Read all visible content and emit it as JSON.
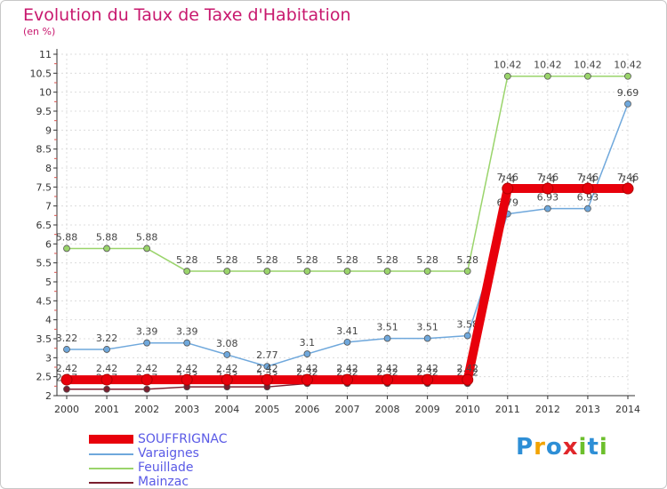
{
  "title": "Evolution du Taux de Taxe d'Habitation",
  "unit": "(en %)",
  "brand": {
    "text": "Proxiti",
    "letters": [
      "P",
      "r",
      "o",
      "x",
      "i",
      "t",
      "i"
    ],
    "colors": [
      "#2e8fd6",
      "#f2a300",
      "#2e8fd6",
      "#e0262a",
      "#6cbf2c",
      "#2e8fd6",
      "#6cbf2c"
    ]
  },
  "chart_data": {
    "type": "line",
    "x": [
      "2000",
      "2001",
      "2002",
      "2003",
      "2004",
      "2005",
      "2006",
      "2007",
      "2008",
      "2009",
      "2010",
      "2011",
      "2012",
      "2013",
      "2014"
    ],
    "ylim": [
      2,
      11
    ],
    "yticks": [
      "2",
      "2.5",
      "3",
      "3.5",
      "4",
      "4.5",
      "5",
      "5.5",
      "6",
      "6.5",
      "7",
      "7.5",
      "8",
      "8.5",
      "9",
      "9.5",
      "10",
      "10.5",
      "11"
    ],
    "grid": true,
    "legend_position": "bottom-left",
    "series": [
      {
        "name": "Mainzac",
        "color": "#7a1e2e",
        "values": [
          2.17,
          2.17,
          2.17,
          2.23,
          2.23,
          2.23,
          2.32,
          2.32,
          2.32,
          2.32,
          2.32,
          7.4,
          7.4,
          7.4,
          7.4
        ],
        "labels": [
          "2.17",
          "2.17",
          "2.17",
          "2.23",
          "2.23",
          "2.23",
          "2.32",
          "2.32",
          "2.32",
          "2.32",
          "2.32",
          "7.4",
          "7.4",
          "7.4",
          "7.4"
        ]
      },
      {
        "name": "Varaignes",
        "color": "#6fa8dc",
        "values": [
          3.22,
          3.22,
          3.39,
          3.39,
          3.08,
          2.77,
          3.1,
          3.41,
          3.51,
          3.51,
          3.58,
          6.79,
          6.93,
          6.93,
          9.69
        ],
        "labels": [
          "3.22",
          "3.22",
          "3.39",
          "3.39",
          "3.08",
          "2.77",
          "3.1",
          "3.41",
          "3.51",
          "3.51",
          "3.58",
          "6.79",
          "6.93",
          "6.93",
          "9.69"
        ]
      },
      {
        "name": "Feuillade",
        "color": "#9ad46b",
        "values": [
          5.88,
          5.88,
          5.88,
          5.28,
          5.28,
          5.28,
          5.28,
          5.28,
          5.28,
          5.28,
          5.28,
          10.42,
          10.42,
          10.42,
          10.42
        ],
        "labels": [
          "5.88",
          "5.88",
          "5.88",
          "5.28",
          "5.28",
          "5.28",
          "5.28",
          "5.28",
          "5.28",
          "5.28",
          "5.28",
          "10.42",
          "10.42",
          "10.42",
          "10.42"
        ]
      },
      {
        "name": "SOUFFRIGNAC",
        "color": "#e8000b",
        "values": [
          2.42,
          2.42,
          2.42,
          2.42,
          2.42,
          2.42,
          2.42,
          2.42,
          2.42,
          2.42,
          2.42,
          7.46,
          7.46,
          7.46,
          7.46
        ],
        "labels": [
          "2.42",
          "2.42",
          "2.42",
          "2.42",
          "2.42",
          "2.42",
          "2.42",
          "2.42",
          "2.42",
          "2.42",
          "2.42",
          "7.46",
          "7.46",
          "7.46",
          "7.46"
        ]
      }
    ],
    "legend": [
      "SOUFFRIGNAC",
      "Varaignes",
      "Feuillade",
      "Mainzac"
    ]
  }
}
